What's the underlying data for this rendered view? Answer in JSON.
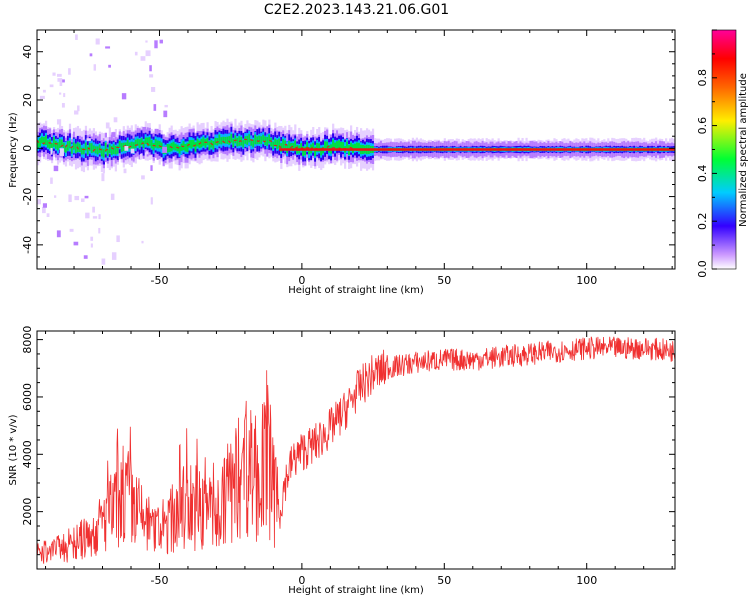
{
  "title": "C2E2.2023.143.21.06.G01",
  "chart_data": [
    {
      "type": "heatmap",
      "xlabel": "Height of straight line (km)",
      "ylabel": "Frequency (Hz)",
      "xlim": [
        -93,
        131
      ],
      "ylim": [
        -50,
        49
      ],
      "xticks": [
        "-50",
        "0",
        "50",
        "100"
      ],
      "yticks": [
        "40",
        "20",
        "0",
        "-20",
        "-40"
      ],
      "colorbar": {
        "label": "Normalized spectral amplitude",
        "range": [
          0,
          1
        ],
        "ticks": [
          "0.0",
          "0.2",
          "0.4",
          "0.6",
          "0.8"
        ]
      },
      "ridge": {
        "x": [
          -93,
          -85,
          -78,
          -70,
          -62,
          -55,
          -48,
          -40,
          -33,
          -25,
          -18,
          -12,
          -8,
          -4,
          0,
          5,
          10,
          15,
          20,
          30,
          50,
          100,
          131
        ],
        "y": [
          3,
          1,
          0,
          -1,
          1,
          2,
          0,
          1,
          2,
          3,
          3,
          3,
          1,
          1,
          0,
          -0.5,
          1,
          0,
          -0.5,
          -0.5,
          -0.5,
          -0.5,
          -0.5
        ]
      }
    },
    {
      "type": "line",
      "xlabel": "Height of straight line (km)",
      "ylabel": "SNR (10 * v/v)",
      "xlim": [
        -93,
        131
      ],
      "ylim": [
        0,
        8300
      ],
      "xticks": [
        "-50",
        "0",
        "50",
        "100"
      ],
      "yticks": [
        "8000",
        "6000",
        "4000",
        "2000"
      ],
      "series": [
        {
          "color": "#f03030",
          "x": [
            -93,
            -85,
            -80,
            -75,
            -70,
            -65,
            -63,
            -60,
            -55,
            -50,
            -45,
            -40,
            -35,
            -30,
            -25,
            -22,
            -20,
            -18,
            -15,
            -12,
            -10,
            -8,
            -6,
            -4,
            -2,
            0,
            5,
            10,
            15,
            20,
            25,
            30,
            40,
            50,
            60,
            70,
            80,
            90,
            100,
            110,
            120,
            131
          ],
          "values": [
            500,
            700,
            900,
            1100,
            1600,
            2200,
            2800,
            2300,
            1600,
            1300,
            1800,
            2300,
            2100,
            1900,
            2800,
            3200,
            4200,
            3400,
            3200,
            3800,
            2600,
            1900,
            3000,
            3600,
            3900,
            4100,
            4400,
            4900,
            5500,
            6300,
            6800,
            7000,
            7200,
            7300,
            7300,
            7400,
            7500,
            7600,
            7700,
            7700,
            7700,
            7600
          ]
        }
      ]
    }
  ]
}
